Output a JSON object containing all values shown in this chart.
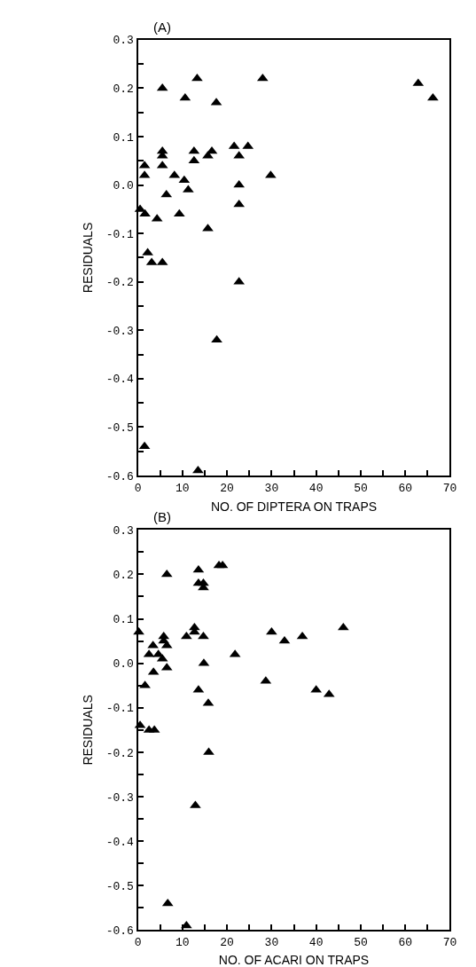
{
  "chart_data": [
    {
      "type": "scatter",
      "title": "(A)",
      "xlabel": "NO. OF DIPTERA ON TRAPS",
      "ylabel": "RESIDUALS",
      "marker": "triangle",
      "xlim": [
        0,
        70
      ],
      "ylim": [
        -0.6,
        0.3
      ],
      "xticks": [
        0,
        {
          "value": 5,
          "label": null
        },
        10,
        {
          "value": 15,
          "label": null
        },
        20,
        {
          "value": 25,
          "label": null
        },
        30,
        {
          "value": 35,
          "label": null
        },
        40,
        {
          "value": 45,
          "label": null
        },
        50,
        {
          "value": 55,
          "label": null
        },
        60,
        {
          "value": 65,
          "label": null
        },
        70
      ],
      "yticks": [
        {
          "value": -0.6,
          "label": "-0.6"
        },
        {
          "value": -0.55,
          "label": null
        },
        {
          "value": -0.5,
          "label": "-0.5"
        },
        {
          "value": -0.45,
          "label": null
        },
        {
          "value": -0.4,
          "label": "-0.4"
        },
        {
          "value": -0.35,
          "label": null
        },
        {
          "value": -0.3,
          "label": "-0.3"
        },
        {
          "value": -0.25,
          "label": null
        },
        {
          "value": -0.2,
          "label": "-0.2"
        },
        {
          "value": -0.15,
          "label": null
        },
        {
          "value": -0.1,
          "label": "-0.1"
        },
        {
          "value": -0.05,
          "label": null
        },
        {
          "value": 0,
          "label": "0.0"
        },
        {
          "value": 0.05,
          "label": null
        },
        {
          "value": 0.1,
          "label": "0.1"
        },
        {
          "value": 0.15,
          "label": null
        },
        {
          "value": 0.2,
          "label": "0.2"
        },
        {
          "value": 0.25,
          "label": null
        },
        {
          "value": 0.3,
          "label": "0.3"
        }
      ],
      "series": [
        {
          "color": "#000000",
          "x": [
            5.5,
            13.3,
            28,
            10.6,
            17.6,
            5.5,
            5.5,
            5.5,
            12.6,
            12.6,
            15.7,
            16.6,
            21.6,
            24.7,
            22.7,
            1.5,
            1.5,
            8.2,
            10.4,
            11.3,
            6.4,
            29.8,
            22.7,
            22.7,
            9.3,
            4.3,
            1.6,
            0.5,
            15.7,
            2.2,
            3.1,
            5.5,
            22.7,
            17.7,
            1.5,
            13.5,
            62.9,
            66.2
          ],
          "values": [
            0.2,
            0.22,
            0.22,
            0.18,
            0.17,
            0.07,
            0.06,
            0.04,
            0.07,
            0.05,
            0.06,
            0.07,
            0.08,
            0.08,
            0.06,
            0.04,
            0.02,
            0.02,
            0.01,
            -0.01,
            -0.02,
            0.02,
            0.0,
            -0.04,
            -0.06,
            -0.07,
            -0.06,
            -0.05,
            -0.09,
            -0.14,
            -0.16,
            -0.16,
            -0.2,
            -0.32,
            -0.54,
            -0.59,
            0.21,
            0.18
          ]
        }
      ]
    },
    {
      "type": "scatter",
      "title": "(B)",
      "xlabel": "NO. OF ACARI ON TRAPS",
      "ylabel": "RESIDUALS",
      "marker": "triangle",
      "xlim": [
        0,
        70
      ],
      "ylim": [
        -0.6,
        0.3
      ],
      "xticks": [
        0,
        {
          "value": 5,
          "label": null
        },
        10,
        {
          "value": 15,
          "label": null
        },
        20,
        {
          "value": 25,
          "label": null
        },
        30,
        {
          "value": 35,
          "label": null
        },
        40,
        {
          "value": 45,
          "label": null
        },
        50,
        {
          "value": 55,
          "label": null
        },
        60,
        {
          "value": 65,
          "label": null
        },
        70
      ],
      "yticks": [
        {
          "value": -0.6,
          "label": "-0.6"
        },
        {
          "value": -0.55,
          "label": null
        },
        {
          "value": -0.5,
          "label": "-0.5"
        },
        {
          "value": -0.45,
          "label": null
        },
        {
          "value": -0.4,
          "label": "-0.4"
        },
        {
          "value": -0.35,
          "label": null
        },
        {
          "value": -0.3,
          "label": "-0.3"
        },
        {
          "value": -0.25,
          "label": null
        },
        {
          "value": -0.2,
          "label": "-0.2"
        },
        {
          "value": -0.15,
          "label": null
        },
        {
          "value": -0.1,
          "label": "-0.1"
        },
        {
          "value": -0.05,
          "label": null
        },
        {
          "value": 0,
          "label": "0.0"
        },
        {
          "value": 0.05,
          "label": null
        },
        {
          "value": 0.1,
          "label": "0.1"
        },
        {
          "value": 0.15,
          "label": null
        },
        {
          "value": 0.2,
          "label": "0.2"
        },
        {
          "value": 0.25,
          "label": null
        },
        {
          "value": 0.3,
          "label": "0.3"
        }
      ],
      "series": [
        {
          "color": "#000000",
          "x": [
            6.5,
            13.6,
            13.6,
            14.7,
            14.7,
            18.2,
            19.0,
            12.7,
            12.7,
            10.9,
            14.7,
            5.8,
            5.8,
            6.5,
            3.4,
            2.5,
            4.6,
            5.5,
            6.5,
            3.5,
            1.6,
            21.8,
            14.8,
            30,
            32.9,
            36.9,
            28.7,
            13.6,
            15.8,
            0.5,
            2.5,
            3.7,
            15.9,
            46.1,
            40,
            42.9,
            12.9,
            6.7,
            10.9,
            0.2
          ],
          "values": [
            0.2,
            0.21,
            0.18,
            0.18,
            0.17,
            0.22,
            0.22,
            0.08,
            0.07,
            0.06,
            0.06,
            0.06,
            0.05,
            0.04,
            0.04,
            0.02,
            0.02,
            0.01,
            -0.01,
            -0.02,
            -0.05,
            0.02,
            0.0,
            0.07,
            0.05,
            0.06,
            -0.04,
            -0.06,
            -0.09,
            -0.14,
            -0.15,
            -0.15,
            -0.2,
            0.08,
            -0.06,
            -0.07,
            -0.32,
            -0.54,
            -0.59,
            0.07
          ]
        }
      ]
    }
  ]
}
